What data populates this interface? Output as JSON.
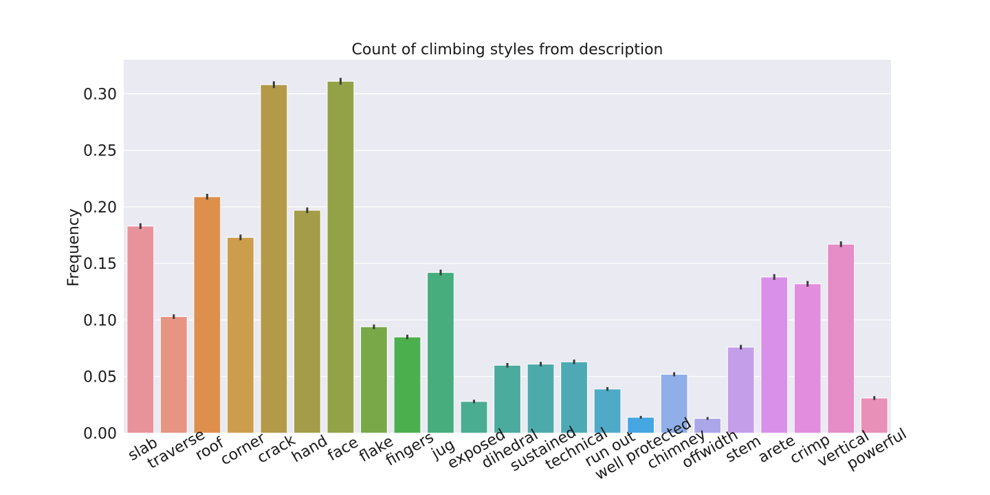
{
  "chart_data": {
    "type": "bar",
    "title": "Count of climbing styles from description",
    "xlabel": "",
    "ylabel": "Frequency",
    "ylim": [
      0,
      0.33
    ],
    "yticks": [
      "0.00",
      "0.05",
      "0.10",
      "0.15",
      "0.20",
      "0.25",
      "0.30"
    ],
    "grid": true,
    "legend": "none",
    "categories": [
      "slab",
      "traverse",
      "roof",
      "corner",
      "crack",
      "hand",
      "face",
      "flake",
      "fingers",
      "jug",
      "exposed",
      "dihedral",
      "sustained",
      "technical",
      "run out",
      "well protected",
      "chimney",
      "offwidth",
      "stem",
      "arete",
      "crimp",
      "vertical",
      "powerful"
    ],
    "values": [
      0.183,
      0.103,
      0.209,
      0.173,
      0.308,
      0.197,
      0.311,
      0.094,
      0.085,
      0.142,
      0.028,
      0.06,
      0.061,
      0.063,
      0.039,
      0.014,
      0.052,
      0.013,
      0.076,
      0.138,
      0.132,
      0.167,
      0.031
    ],
    "error": [
      0.0025,
      0.002,
      0.0025,
      0.0025,
      0.003,
      0.0025,
      0.003,
      0.002,
      0.002,
      0.0025,
      0.0015,
      0.002,
      0.002,
      0.002,
      0.0017,
      0.0012,
      0.0018,
      0.0012,
      0.002,
      0.0025,
      0.0025,
      0.0025,
      0.0017
    ],
    "colors": [
      "#e8939c",
      "#e79483",
      "#df8f4c",
      "#cc9d4d",
      "#b39a48",
      "#a49c48",
      "#93a147",
      "#78a848",
      "#4caf4d",
      "#48ad7c",
      "#4aac91",
      "#4bab9d",
      "#4cabaa",
      "#4daab5",
      "#4faac7",
      "#46a6e2",
      "#90aee8",
      "#aba6ea",
      "#c49ee8",
      "#d990e8",
      "#e38ddf",
      "#e68cc7",
      "#e890b7"
    ],
    "background": "#eaeaf2",
    "errorbar_color": "#3c3c3c"
  }
}
